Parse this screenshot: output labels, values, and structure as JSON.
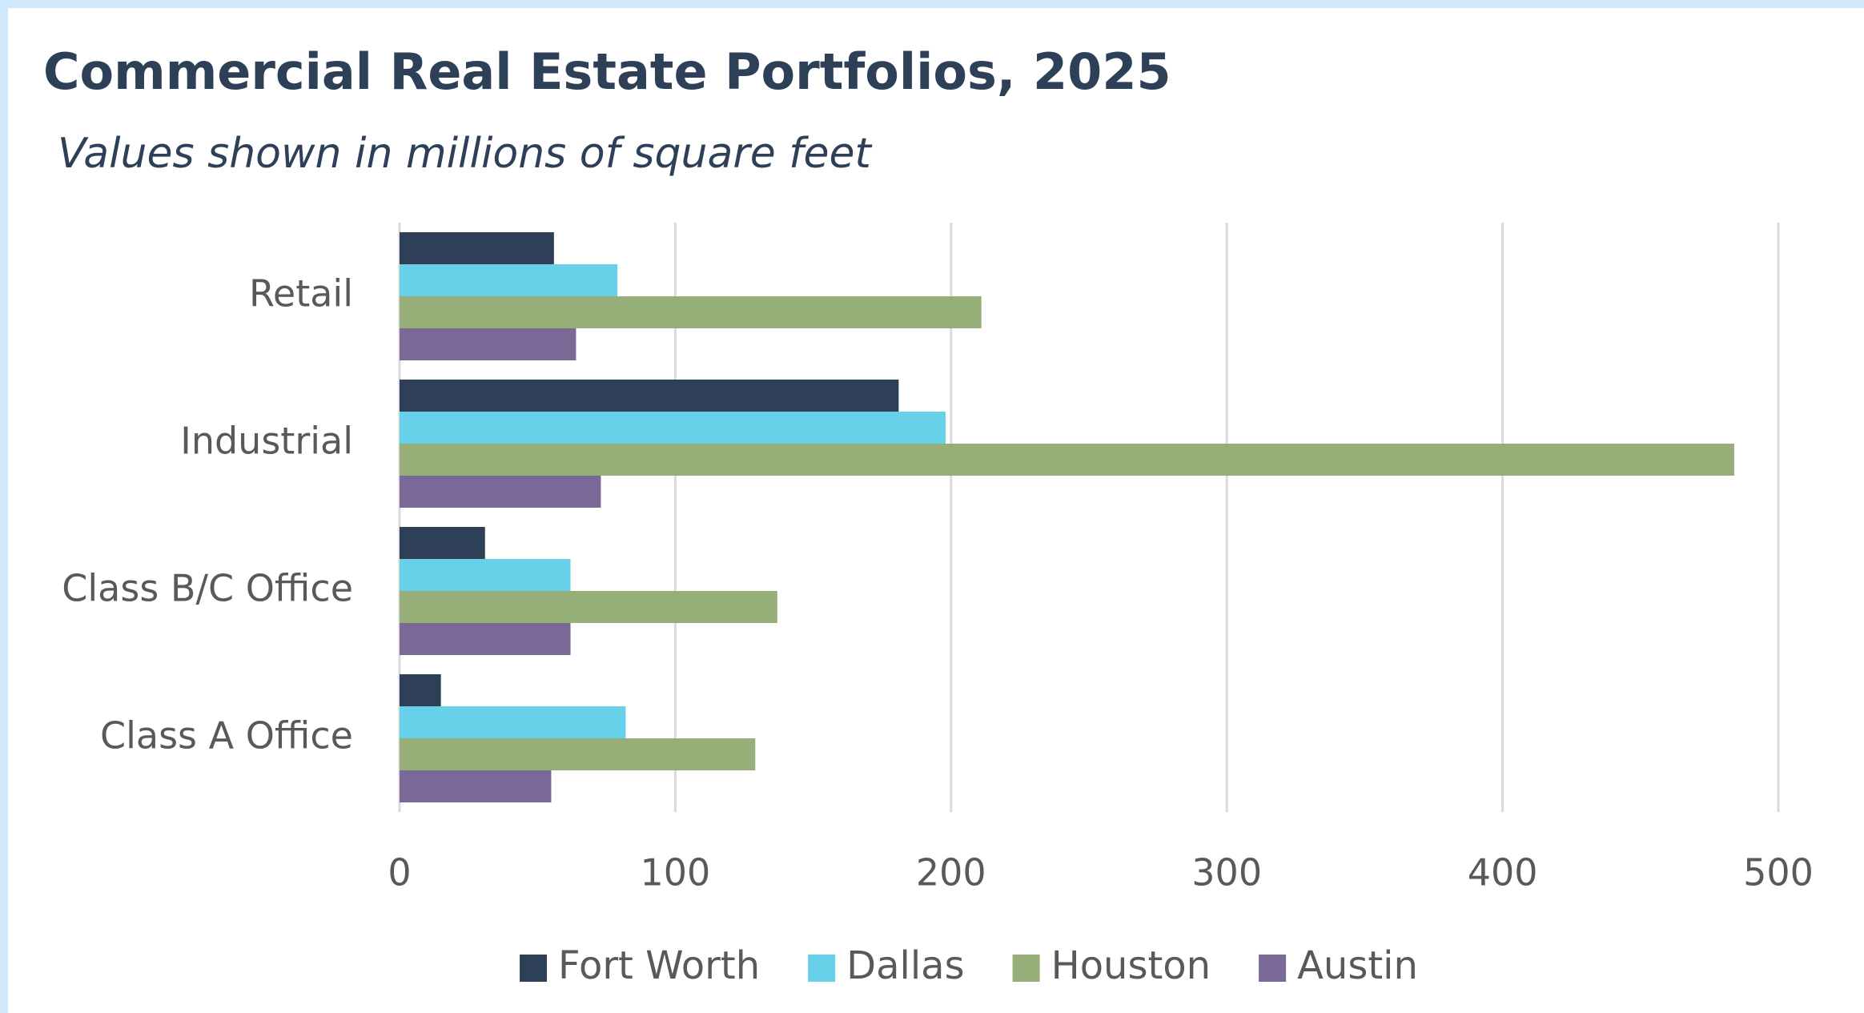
{
  "chart_data": {
    "type": "barh",
    "title": "Commercial Real Estate Portfolios, 2025",
    "subtitle": "Values shown in millions of square feet",
    "categories": [
      "Retail",
      "Industrial",
      "Class B/C Office",
      "Class A Office"
    ],
    "series": [
      {
        "name": "Fort Worth",
        "color": "#2e4057",
        "values": [
          56,
          181,
          31,
          15
        ]
      },
      {
        "name": "Dallas",
        "color": "#66d1e8",
        "values": [
          79,
          198,
          62,
          82
        ]
      },
      {
        "name": "Houston",
        "color": "#96ae78",
        "values": [
          211,
          484,
          137,
          129
        ]
      },
      {
        "name": "Austin",
        "color": "#7a6896",
        "values": [
          64,
          73,
          62,
          55
        ]
      }
    ],
    "xlim": [
      0,
      500
    ],
    "xticks": [
      0,
      100,
      200,
      300,
      400,
      500
    ],
    "grid": true,
    "legend": "bottom"
  }
}
